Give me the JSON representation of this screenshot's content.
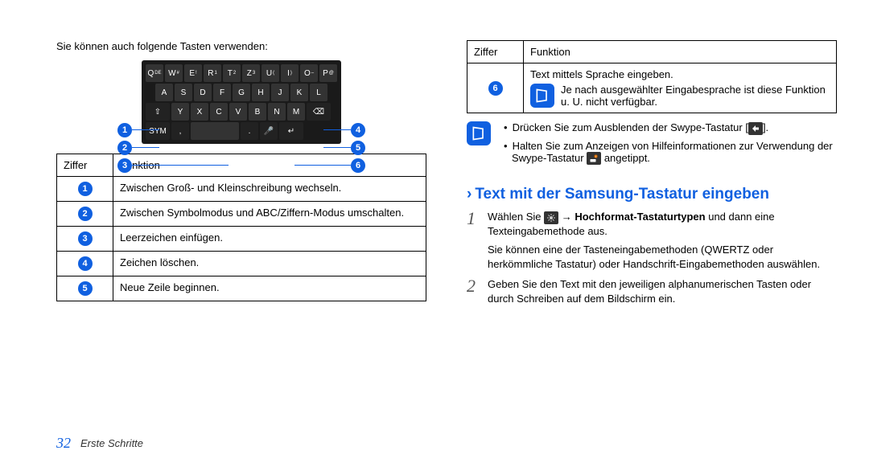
{
  "colors": {
    "accent": "#1060e0",
    "key_bg": "#333",
    "keyboard_bg": "#1a1a1a"
  },
  "left": {
    "intro": "Sie können auch folgende Tasten verwenden:",
    "keyboard": {
      "row1": [
        "Q",
        "W",
        "E",
        "R",
        "T",
        "Z",
        "U",
        "I",
        "O",
        "P"
      ],
      "row1_sup": [
        "DE",
        "#",
        "!",
        "1",
        "2",
        "3",
        "(",
        ")",
        "–",
        "@"
      ],
      "row2": [
        "A",
        "S",
        "D",
        "F",
        "G",
        "H",
        "J",
        "K",
        "L"
      ],
      "row3": [
        "⇧",
        "Y",
        "X",
        "C",
        "V",
        "B",
        "N",
        "M",
        "⌫"
      ],
      "row4": [
        "SYM",
        ",",
        "␣",
        ".",
        "🎤",
        "↵"
      ]
    },
    "markers_left": [
      "1",
      "2",
      "3"
    ],
    "markers_right": [
      "4",
      "5",
      "6"
    ],
    "table": {
      "headers": [
        "Ziffer",
        "Funktion"
      ],
      "rows": [
        {
          "n": "1",
          "text": "Zwischen Groß- und Kleinschreibung wechseln."
        },
        {
          "n": "2",
          "text": "Zwischen Symbolmodus und ABC/Ziffern-Modus umschalten."
        },
        {
          "n": "3",
          "text": "Leerzeichen einfügen."
        },
        {
          "n": "4",
          "text": "Zeichen löschen."
        },
        {
          "n": "5",
          "text": "Neue Zeile beginnen."
        }
      ]
    }
  },
  "right": {
    "table": {
      "headers": [
        "Ziffer",
        "Funktion"
      ],
      "row": {
        "n": "6",
        "line1": "Text mittels Sprache eingeben.",
        "note": "Je nach ausgewählter Eingabesprache ist diese Funktion u. U. nicht verfügbar."
      }
    },
    "tips": {
      "items": [
        {
          "pre": "Drücken Sie zum Ausblenden der Swype-Tastatur [",
          "icon": "back",
          "post": "]."
        },
        {
          "pre": "Halten Sie zum Anzeigen von Hilfeinformationen zur Verwendung der Swype-Tastatur ",
          "icon": "info-key",
          "post": " angetippt."
        }
      ]
    },
    "section_title": "Text mit der Samsung-Tastatur eingeben",
    "steps": [
      {
        "num": "1",
        "line_pre": "Wählen Sie ",
        "icon": "gear",
        "line_mid": " → ",
        "bold": "Hochformat-Tastaturtypen",
        "line_post": " und dann eine Texteingabemethode aus.",
        "sub": "Sie können eine der Tasteneingabemethoden (QWERTZ oder herkömmliche Tastatur) oder Handschrift-Eingabemethoden auswählen."
      },
      {
        "num": "2",
        "line": "Geben Sie den Text mit den jeweiligen alphanumerischen Tasten oder durch Schreiben auf dem Bildschirm ein."
      }
    ]
  },
  "footer": {
    "page": "32",
    "chapter": "Erste Schritte"
  }
}
